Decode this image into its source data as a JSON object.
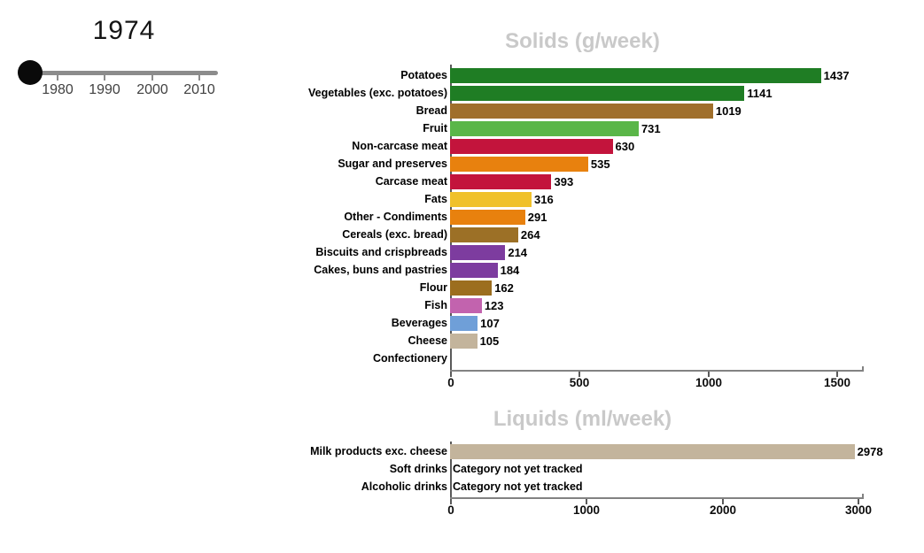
{
  "slider": {
    "selected_year": "1974",
    "ticks": [
      "1980",
      "1990",
      "2000",
      "2010"
    ]
  },
  "solids": {
    "title": "Solids (g/week)",
    "rows": [
      {
        "label": "Potatoes",
        "value": "1437"
      },
      {
        "label": "Vegetables (exc. potatoes)",
        "value": "1141"
      },
      {
        "label": "Bread",
        "value": "1019"
      },
      {
        "label": "Fruit",
        "value": "731"
      },
      {
        "label": "Non-carcase meat",
        "value": "630"
      },
      {
        "label": "Sugar and preserves",
        "value": "535"
      },
      {
        "label": "Carcase meat",
        "value": "393"
      },
      {
        "label": "Fats",
        "value": "316"
      },
      {
        "label": "Other - Condiments",
        "value": "291"
      },
      {
        "label": "Cereals (exc. bread)",
        "value": "264"
      },
      {
        "label": "Biscuits and crispbreads",
        "value": "214"
      },
      {
        "label": "Cakes, buns and pastries",
        "value": "184"
      },
      {
        "label": "Flour",
        "value": "162"
      },
      {
        "label": "Fish",
        "value": "123"
      },
      {
        "label": "Beverages",
        "value": "107"
      },
      {
        "label": "Cheese",
        "value": "105"
      },
      {
        "label": "Confectionery",
        "value": ""
      }
    ],
    "axis_ticks": [
      "0",
      "500",
      "1000",
      "1500"
    ]
  },
  "liquids": {
    "title": "Liquids (ml/week)",
    "rows": [
      {
        "label": "Milk products exc. cheese",
        "value": "2978",
        "note": ""
      },
      {
        "label": "Soft drinks",
        "value": "",
        "note": "Category not yet tracked"
      },
      {
        "label": "Alcoholic drinks",
        "value": "",
        "note": "Category not yet tracked"
      }
    ],
    "axis_ticks": [
      "0",
      "1000",
      "2000",
      "3000"
    ]
  },
  "chart_data": [
    {
      "type": "bar",
      "orientation": "horizontal",
      "title": "Solids (g/week)",
      "categories": [
        "Potatoes",
        "Vegetables (exc. potatoes)",
        "Bread",
        "Fruit",
        "Non-carcase meat",
        "Sugar and preserves",
        "Carcase meat",
        "Fats",
        "Other - Condiments",
        "Cereals (exc. bread)",
        "Biscuits and crispbreads",
        "Cakes, buns and pastries",
        "Flour",
        "Fish",
        "Beverages",
        "Cheese",
        "Confectionery"
      ],
      "values": [
        1437,
        1141,
        1019,
        731,
        630,
        535,
        393,
        316,
        291,
        264,
        214,
        184,
        162,
        123,
        107,
        105,
        null
      ],
      "bar_colors": [
        "#1f7d24",
        "#1f7d24",
        "#a06f2b",
        "#5ab648",
        "#c3143c",
        "#e8810e",
        "#c3143c",
        "#f0c12a",
        "#e8810e",
        "#9c7026",
        "#7d3c9f",
        "#7d3c9f",
        "#9c6e1f",
        "#c263ae",
        "#6f9fd8",
        "#c3b49c",
        null
      ],
      "xlim": [
        0,
        1500
      ],
      "x_ticks": [
        0,
        500,
        1000,
        1500
      ],
      "value_labels_shown": true,
      "grid": false,
      "legend": false
    },
    {
      "type": "bar",
      "orientation": "horizontal",
      "title": "Liquids (ml/week)",
      "categories": [
        "Milk products exc. cheese",
        "Soft drinks",
        "Alcoholic drinks"
      ],
      "values": [
        2978,
        null,
        null
      ],
      "annotations": [
        null,
        "Category not yet tracked",
        "Category not yet tracked"
      ],
      "bar_colors": [
        "#c3b49c",
        null,
        null
      ],
      "xlim": [
        0,
        3000
      ],
      "x_ticks": [
        0,
        1000,
        2000,
        3000
      ],
      "value_labels_shown": true,
      "grid": false,
      "legend": false
    }
  ],
  "colors": {
    "title_gray": "#c9c9c9",
    "axis_gray": "#828282",
    "slider_track": "#8c8c8c",
    "slider_handle": "#0a0a0a",
    "text_black": "#000000"
  }
}
